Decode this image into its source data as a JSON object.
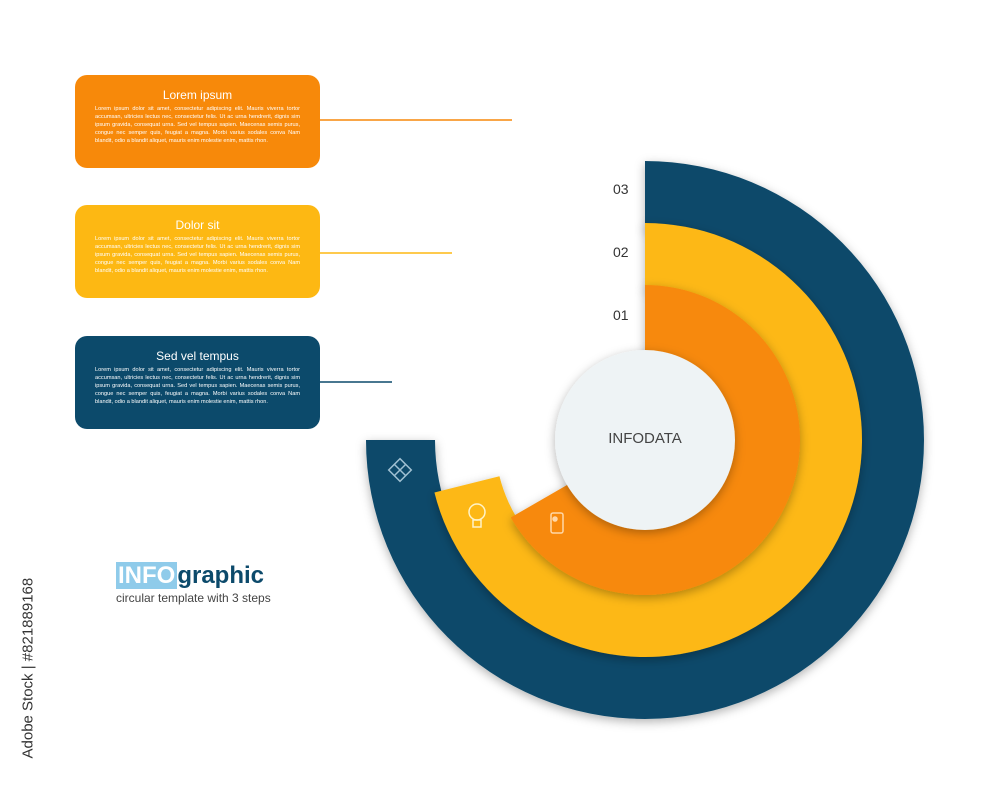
{
  "colors": {
    "orange": "#F7890A",
    "yellow": "#FDB813",
    "navy": "#0C4A6B",
    "center": "#EEF3F5"
  },
  "boxes": [
    {
      "title": "Lorem ipsum",
      "text": "Lorem ipsum dolor sit amet, consectetur adipiscing elit. Mauris viverra tortor accumsan, ultricies lectus nec, consectetur felis. Ut ac urna hendrerit, dignis sim ipsum gravida, consequat urna. Sed vel tempus sapien. Maecenas semis purus, congue nec semper quis, feugiat a magna. Morbi varius sodales conva Nam blandit, odio a blandit aliquet, mauris enim molestie enim, mattis rhon."
    },
    {
      "title": "Dolor sit",
      "text": "Lorem ipsum dolor sit amet, consectetur adipiscing elit. Mauris viverra tortor accumsan, ultricies lectus nec, consectetur felis. Ut ac urna hendrerit, dignis sim ipsum gravida, consequat urna. Sed vel tempus sapien. Maecenas semis purus, congue nec semper quis, feugiat a magna. Morbi varius sodales conva Nam blandit, odio a blandit aliquet, mauris enim molestie enim, mattis rhon."
    },
    {
      "title": "Sed vel tempus",
      "text": "Lorem ipsum dolor sit amet, consectetur adipiscing elit. Mauris viverra tortor accumsan, ultricies lectus nec, consectetur felis. Ut ac urna hendrerit, dignis sim ipsum gravida, consequat urna. Sed vel tempus sapien. Maecenas semis purus, congue nec semper quis, feugiat a magna. Morbi varius sodales conva Nam blandit, odio a blandit aliquet, mauris enim molestie enim, mattis rhon."
    }
  ],
  "steps": [
    "01",
    "02",
    "03"
  ],
  "center_label": "INFODATA",
  "icons": [
    "puzzle-icon",
    "lightbulb-icon",
    "smartphone-icon"
  ],
  "heading": {
    "info": "INFO",
    "graphic": "graphic",
    "subtitle": "circular template with 3 steps"
  },
  "watermark_id": "#821889168",
  "watermark_side": "Adobe Stock"
}
